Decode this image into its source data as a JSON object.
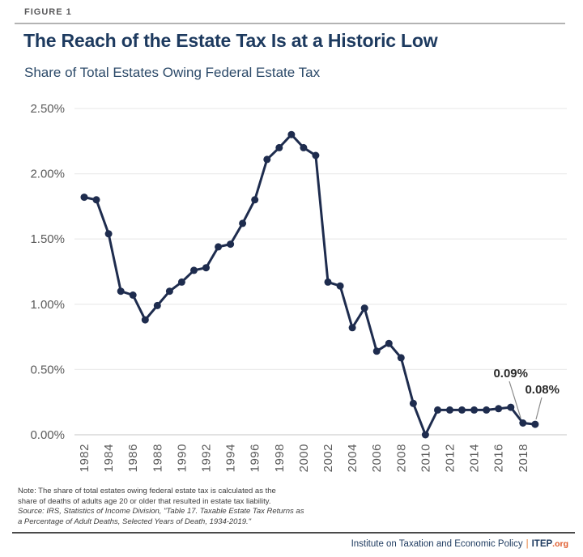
{
  "figure_label": "FIGURE 1",
  "title": "The Reach of the Estate Tax Is at a Historic Low",
  "subtitle": "Share of Total Estates Owing Federal Estate Tax",
  "chart_data": {
    "type": "line",
    "title": "The Reach of the Estate Tax Is at a Historic Low",
    "subtitle": "Share of Total Estates Owing Federal Estate Tax",
    "x": [
      1982,
      1983,
      1984,
      1985,
      1986,
      1987,
      1988,
      1989,
      1990,
      1991,
      1992,
      1993,
      1994,
      1995,
      1996,
      1997,
      1998,
      1999,
      2000,
      2001,
      2002,
      2003,
      2004,
      2005,
      2006,
      2007,
      2008,
      2009,
      2010,
      2011,
      2012,
      2013,
      2014,
      2015,
      2016,
      2017,
      2018,
      2019
    ],
    "values": [
      1.82,
      1.8,
      1.54,
      1.1,
      1.07,
      0.88,
      0.99,
      1.1,
      1.17,
      1.26,
      1.28,
      1.44,
      1.46,
      1.62,
      1.8,
      2.11,
      2.2,
      2.3,
      2.2,
      2.14,
      1.17,
      1.14,
      0.82,
      0.97,
      0.64,
      0.7,
      0.59,
      0.24,
      0.0,
      0.19,
      0.19,
      0.19,
      0.19,
      0.19,
      0.2,
      0.21,
      0.09,
      0.08
    ],
    "units": "percent of adult deaths",
    "ylim": [
      0,
      2.5
    ],
    "ytick_values": [
      0,
      0.5,
      1.0,
      1.5,
      2.0,
      2.5
    ],
    "ytick_labels": [
      "0.00%",
      "0.50%",
      "1.00%",
      "1.50%",
      "2.00%",
      "2.50%"
    ],
    "xtick_labels": [
      "1982",
      "1984",
      "1986",
      "1988",
      "1990",
      "1992",
      "1994",
      "1996",
      "1998",
      "2000",
      "2002",
      "2004",
      "2006",
      "2008",
      "2010",
      "2012",
      "2014",
      "2016",
      "2018"
    ],
    "grid": "horizontal",
    "legend": "none",
    "annotations": [
      {
        "label": "0.09%",
        "year": 2018,
        "value": 0.09
      },
      {
        "label": "0.08%",
        "year": 2019,
        "value": 0.08
      }
    ]
  },
  "note": {
    "line1": "Note: The share of total estates owing federal estate tax is calculated as the",
    "line2": "share of deaths of adults age 20 or older that resulted in estate tax liability.",
    "line3": "Source: IRS, Statistics of Income Division, \"Table 17. Taxable Estate Tax Returns as",
    "line4": "a Percentage of Adult Deaths, Selected Years of Death, 1934-2019.\""
  },
  "footer": {
    "org": "Institute on Taxation and Economic Policy",
    "separator": "|",
    "brand": "ITEP",
    "brand_suffix": ".org"
  },
  "colors": {
    "line": "#1e2c4e",
    "title_navy": "#1d3a5f",
    "accent_orange": "#e05a2b",
    "gridline": "#ececec",
    "baseline": "#d9d9d9",
    "axis_text": "#5a5a5a",
    "annotation_text": "#2b2b2b",
    "leader_line": "#8a8a8a"
  }
}
